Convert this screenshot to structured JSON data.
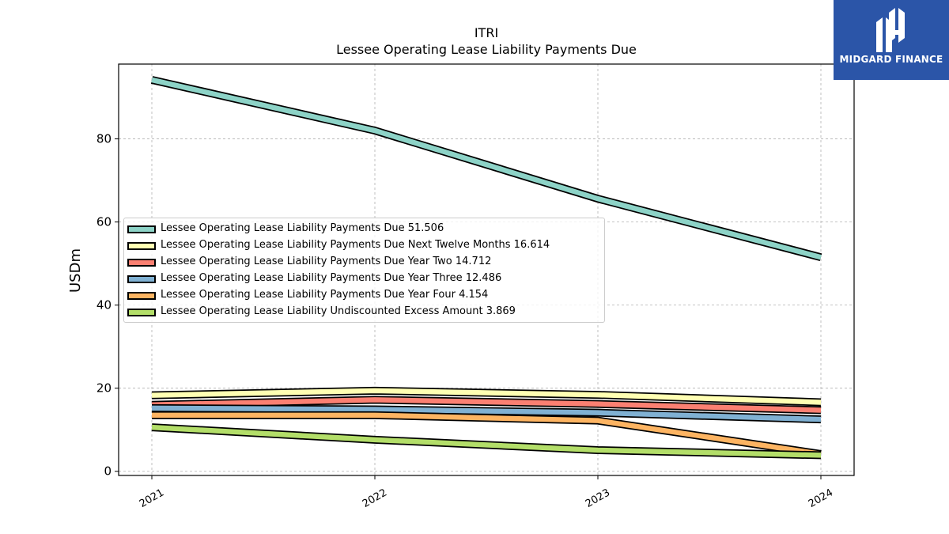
{
  "brand": {
    "name": "MIDGARD FINANCE",
    "logo_icon": "midgard-m-logo"
  },
  "chart_data": {
    "type": "area",
    "title": "ITRI",
    "subtitle": "Lessee Operating Lease Liability Payments Due",
    "xlabel": "",
    "ylabel": "USDm",
    "x": [
      "2021",
      "2022",
      "2023",
      "2024"
    ],
    "ylim": [
      -1,
      98
    ],
    "yticks": [
      0,
      20,
      40,
      60,
      80
    ],
    "grid": true,
    "legend_position": "center-left",
    "series": [
      {
        "name": "Lessee Operating Lease Liability Payments Due",
        "last_label": "51.506",
        "color": "#8dd3c7",
        "values": [
          94.2,
          82.0,
          65.6,
          51.506
        ]
      },
      {
        "name": "Lessee Operating Lease Liability Payments Due Next Twelve Months",
        "last_label": "16.614",
        "color": "#ffffb3",
        "values": [
          18.3,
          19.4,
          18.4,
          16.614
        ]
      },
      {
        "name": "Lessee Operating Lease Liability Payments Due Year Two",
        "last_label": "14.712",
        "color": "#fb8072",
        "values": [
          16.0,
          17.2,
          16.2,
          14.712
        ]
      },
      {
        "name": "Lessee Operating Lease Liability Payments Due Year Three",
        "last_label": "12.486",
        "color": "#80b1d3",
        "values": [
          15.2,
          14.9,
          14.1,
          12.486
        ]
      },
      {
        "name": "Lessee Operating Lease Liability Payments Due Year Four",
        "last_label": "4.154",
        "color": "#fdb462",
        "values": [
          13.5,
          13.5,
          12.2,
          4.154
        ]
      },
      {
        "name": "Lessee Operating Lease Liability Undiscounted Excess Amount",
        "last_label": "3.869",
        "color": "#b3de69",
        "values": [
          10.6,
          7.6,
          5.1,
          3.869
        ]
      }
    ]
  }
}
